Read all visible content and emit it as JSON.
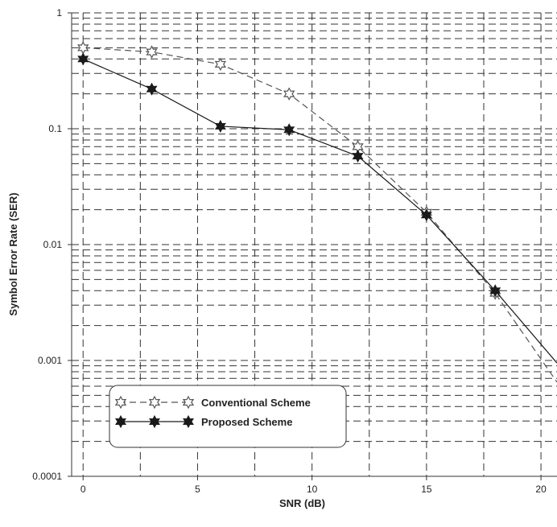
{
  "chart_data": {
    "type": "line",
    "title": "",
    "xlabel": "SNR (dB)",
    "ylabel": "Symbol Error Rate (SER)",
    "x_scale": "linear",
    "y_scale": "log",
    "xlim": [
      -0.5,
      20.7
    ],
    "ylim": [
      0.0001,
      1
    ],
    "x_ticks": [
      "0",
      "5",
      "10",
      "15",
      "20"
    ],
    "y_ticks": [
      "0.0001",
      "0.001",
      "0.01",
      "0.1",
      "1"
    ],
    "grid": true,
    "legend_position": "bottom-left",
    "series": [
      {
        "name": "Conventional Scheme",
        "line_style": "dashed",
        "marker": "hollow-star",
        "color": "#555555",
        "x": [
          0,
          3,
          6,
          9,
          12,
          15,
          18
        ],
        "y": [
          0.5,
          0.46,
          0.36,
          0.2,
          0.07,
          0.019,
          0.0038
        ],
        "tail_x": 20.7,
        "tail_y": 0.00065
      },
      {
        "name": "Proposed Scheme",
        "line_style": "solid",
        "marker": "filled-star",
        "color": "#1a1a1a",
        "x": [
          0,
          3,
          6,
          9,
          12,
          15,
          18
        ],
        "y": [
          0.4,
          0.22,
          0.105,
          0.098,
          0.058,
          0.018,
          0.004
        ],
        "tail_x": 20.7,
        "tail_y": 0.00095
      }
    ]
  }
}
